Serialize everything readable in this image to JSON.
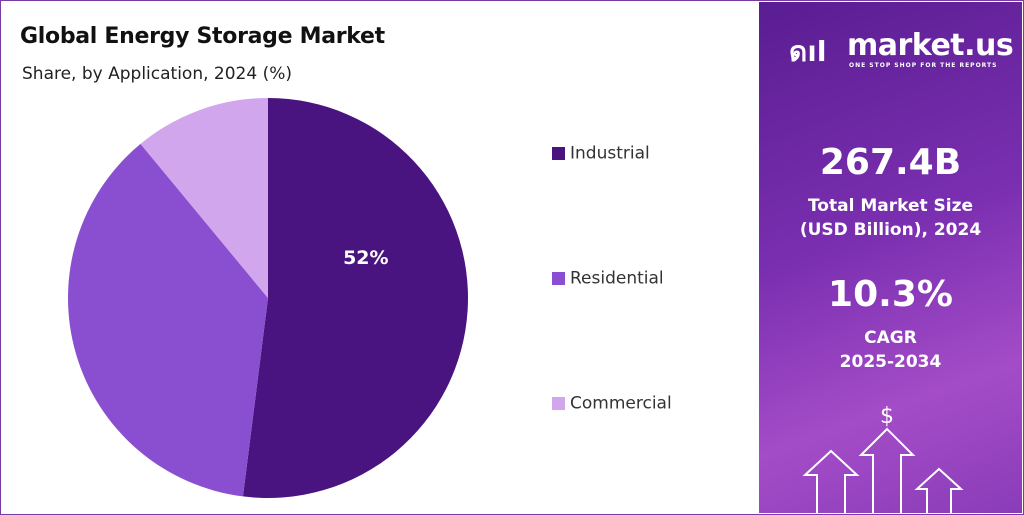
{
  "chart_data": {
    "type": "pie",
    "title": "Global Energy Storage Market",
    "subtitle": "Share, by Application, 2024 (%)",
    "categories": [
      "Industrial",
      "Residential",
      "Commercial"
    ],
    "values": [
      52,
      37,
      11
    ],
    "data_labels": [
      "52%",
      "",
      ""
    ],
    "colors": [
      "#4a1480",
      "#8a4fd0",
      "#d1a6ec"
    ],
    "legend_placement": "right"
  },
  "sidebar": {
    "logo_name": "market.us",
    "logo_tagline": "ONE STOP SHOP FOR THE REPORTS",
    "market_size": "267.4B",
    "market_size_label_1": "Total Market Size",
    "market_size_label_2": "(USD Billion), 2024",
    "cagr": "10.3%",
    "cagr_label_1": "CAGR",
    "cagr_label_2": "2025-2034",
    "dollar_icon": "dollar-sign",
    "arrows_icon": "up-arrows"
  }
}
